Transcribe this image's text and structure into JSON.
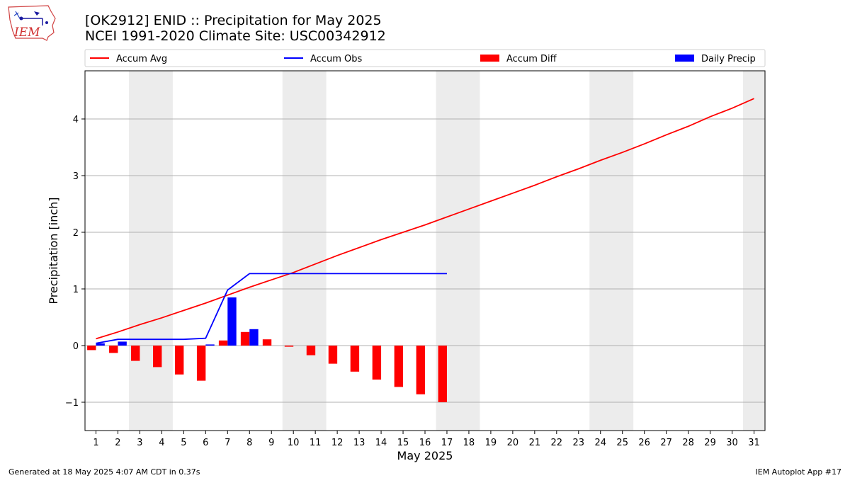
{
  "logo": {
    "text": "IEM"
  },
  "title_line1": "[OK2912] ENID :: Precipitation for May 2025",
  "title_line2": "NCEI 1991-2020 Climate Site: USC00342912",
  "footer_left": "Generated at 18 May 2025 4:07 AM CDT in 0.37s",
  "footer_right": "IEM Autoplot App #17",
  "chart_data": {
    "type": "bar",
    "xlabel": "May 2025",
    "ylabel": "Precipitation [inch]",
    "xlim": [
      0.5,
      31.5
    ],
    "ylim": [
      -1.5,
      4.85
    ],
    "yticks": [
      -1,
      0,
      1,
      2,
      3,
      4
    ],
    "days": [
      1,
      2,
      3,
      4,
      5,
      6,
      7,
      8,
      9,
      10,
      11,
      12,
      13,
      14,
      15,
      16,
      17,
      18,
      19,
      20,
      21,
      22,
      23,
      24,
      25,
      26,
      27,
      28,
      29,
      30,
      31
    ],
    "weekend_bands": [
      [
        2.5,
        4.5
      ],
      [
        9.5,
        11.5
      ],
      [
        16.5,
        18.5
      ],
      [
        23.5,
        25.5
      ],
      [
        30.5,
        31.5
      ]
    ],
    "grid": "y",
    "legend": {
      "placement": "top",
      "entries": [
        {
          "label": "Accum Avg",
          "kind": "line",
          "color": "#ff0000"
        },
        {
          "label": "Accum Obs",
          "kind": "line",
          "color": "#0000ff"
        },
        {
          "label": "Accum Diff",
          "kind": "bar",
          "color": "#ff0000"
        },
        {
          "label": "Daily Precip",
          "kind": "bar",
          "color": "#0000ff"
        }
      ]
    },
    "series": [
      {
        "name": "Accum Avg",
        "kind": "line",
        "color": "#ff0000",
        "x": [
          1,
          2,
          3,
          4,
          5,
          6,
          7,
          8,
          9,
          10,
          11,
          12,
          13,
          14,
          15,
          16,
          17,
          18,
          19,
          20,
          21,
          22,
          23,
          24,
          25,
          26,
          27,
          28,
          29,
          30,
          31
        ],
        "values": [
          0.12,
          0.24,
          0.37,
          0.49,
          0.62,
          0.75,
          0.89,
          1.03,
          1.16,
          1.29,
          1.44,
          1.59,
          1.73,
          1.87,
          2.0,
          2.13,
          2.27,
          2.41,
          2.55,
          2.69,
          2.83,
          2.98,
          3.12,
          3.27,
          3.41,
          3.56,
          3.72,
          3.87,
          4.04,
          4.19,
          4.36
        ]
      },
      {
        "name": "Accum Obs",
        "kind": "line",
        "color": "#0000ff",
        "x": [
          1,
          2,
          3,
          4,
          5,
          6,
          7,
          8,
          9,
          10,
          11,
          12,
          13,
          14,
          15,
          16,
          17
        ],
        "values": [
          0.04,
          0.11,
          0.11,
          0.11,
          0.11,
          0.13,
          0.98,
          1.27,
          1.27,
          1.27,
          1.27,
          1.27,
          1.27,
          1.27,
          1.27,
          1.27,
          1.27
        ]
      },
      {
        "name": "Accum Diff",
        "kind": "bar",
        "color": "#ff0000",
        "x": [
          1,
          2,
          3,
          4,
          5,
          6,
          7,
          8,
          9,
          10,
          11,
          12,
          13,
          14,
          15,
          16,
          17
        ],
        "values": [
          -0.08,
          -0.13,
          -0.27,
          -0.38,
          -0.51,
          -0.62,
          0.09,
          0.24,
          0.11,
          -0.02,
          -0.17,
          -0.32,
          -0.46,
          -0.6,
          -0.73,
          -0.86,
          -1.0
        ]
      },
      {
        "name": "Daily Precip",
        "kind": "bar",
        "color": "#0000ff",
        "x": [
          1,
          2,
          3,
          4,
          5,
          6,
          7,
          8,
          9,
          10,
          11,
          12,
          13,
          14,
          15,
          16,
          17
        ],
        "values": [
          0.04,
          0.07,
          0,
          0,
          0,
          0.02,
          0.85,
          0.29,
          0,
          0,
          0,
          0,
          0,
          0,
          0,
          0,
          0
        ]
      }
    ]
  }
}
